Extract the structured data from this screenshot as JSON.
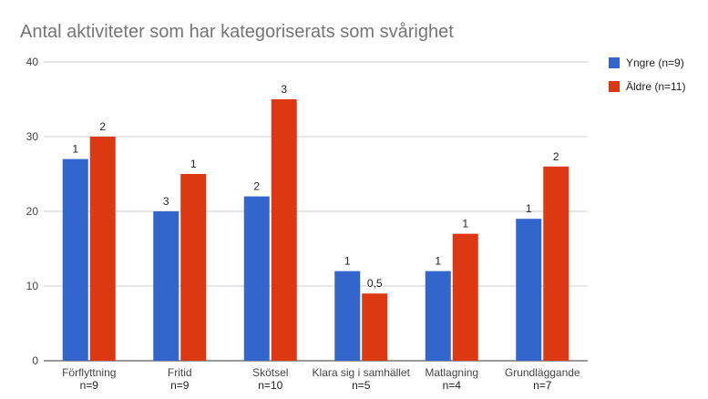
{
  "chart_data": {
    "type": "bar",
    "title": "Antal aktiviteter som har kategoriserats som svårighet",
    "xlabel": "",
    "ylabel": "",
    "ylim": [
      0,
      40
    ],
    "yticks": [
      0,
      10,
      20,
      30,
      40
    ],
    "grid": true,
    "legend_position": "right",
    "categories": [
      "Förflyttning",
      "Fritid",
      "Skötsel",
      "Klara sig i samhället",
      "Matlagning",
      "Grundläggande"
    ],
    "category_sublabels": [
      "n=9",
      "n=9",
      "n=10",
      "n=5",
      "n=4",
      "n=7"
    ],
    "series": [
      {
        "name": "Yngre (n=9)",
        "color": "#3366cc",
        "values": [
          27,
          20,
          22,
          12,
          12,
          19
        ],
        "data_labels": [
          "1",
          "3",
          "2",
          "1",
          "1",
          "1"
        ]
      },
      {
        "name": "Äldre (n=11)",
        "color": "#dc3912",
        "values": [
          30,
          25,
          35,
          9,
          17,
          26
        ],
        "data_labels": [
          "2",
          "1",
          "3",
          "0,5",
          "1",
          "2"
        ]
      }
    ]
  }
}
